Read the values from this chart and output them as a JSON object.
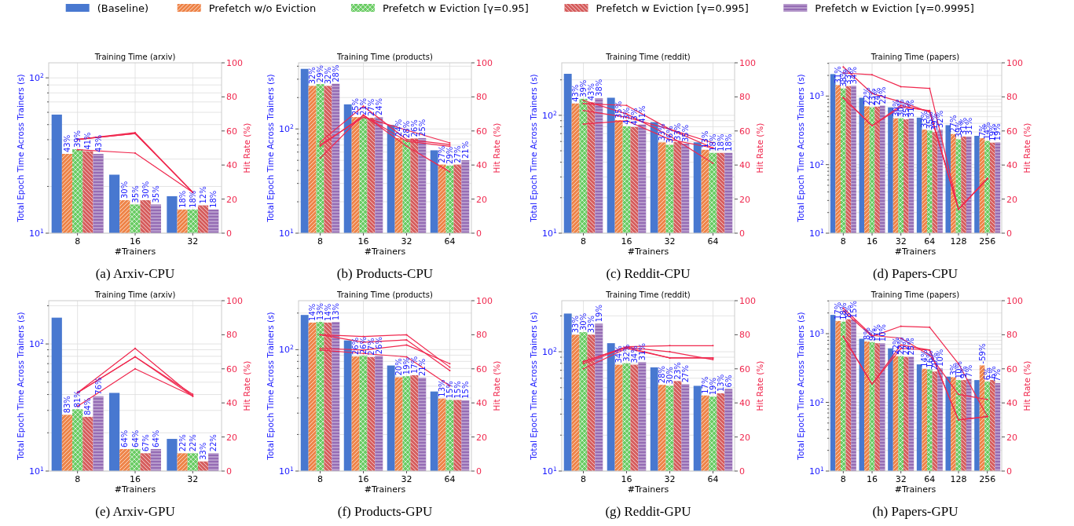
{
  "chart_data": [
    {
      "type": "bar",
      "title": "Training Time (arxiv)",
      "xlabel": "#Trainers",
      "ylabel": "Total Epoch Time Across Trainers (s)",
      "y2label": "Hit Rate (%)",
      "legend": "top",
      "log": "y",
      "grid": true,
      "categories": [
        "8",
        "16",
        "32"
      ],
      "ylim": [
        10,
        125
      ],
      "yticks": [
        {
          "value": 10,
          "label": "10$^{1}$"
        },
        {
          "value": 20,
          "label": null
        },
        {
          "value": 30,
          "label": null
        },
        {
          "value": 40,
          "label": null
        },
        {
          "value": 50,
          "label": null
        },
        {
          "value": 60,
          "label": null
        },
        {
          "value": 70,
          "label": null
        },
        {
          "value": 80,
          "label": null
        },
        {
          "value": 90,
          "label": null
        },
        {
          "value": 100,
          "label": "10$^{2}$"
        }
      ],
      "y2lim": [
        0,
        100
      ],
      "y2ticks": [
        0,
        20,
        40,
        60,
        80,
        100
      ],
      "annotations": [
        "(a) Arxiv-CPU",
        "43%",
        "39%",
        "41%",
        "43%",
        "30%",
        "35%",
        "30%",
        "35%",
        "18%",
        "18%",
        "12%",
        "18%"
      ],
      "series": [
        {
          "name": "(Baseline)",
          "color": "#4878d0",
          "values": [
            58,
            23.8,
            17.3
          ]
        },
        {
          "name": "Prefetch w/o Eviction",
          "color": "#ee854a",
          "values": [
            32.4,
            16.3,
            14.2
          ]
        },
        {
          "name": "Prefetch w Eviction [γ=0.95]",
          "color": "#6acc64",
          "values": [
            34.7,
            15.3,
            14.2
          ]
        },
        {
          "name": "Prefetch w Eviction [γ=0.995]",
          "color": "#d65f5f",
          "values": [
            33.7,
            16.3,
            15.1
          ]
        },
        {
          "name": "Prefetch w Eviction [γ=0.9995]",
          "color": "#956cb4",
          "values": [
            32.4,
            15.3,
            14.2
          ]
        },
        {
          "type": "line",
          "axis": "y2",
          "color": "#f0284e",
          "values": [
            49,
            47,
            24
          ]
        },
        {
          "type": "line",
          "axis": "y2",
          "color": "#f0284e",
          "values": [
            55,
            59,
            24
          ]
        },
        {
          "type": "line",
          "axis": "y2",
          "color": "#f0284e",
          "values": [
            55,
            58.5,
            24
          ]
        },
        {
          "type": "line",
          "axis": "y2",
          "color": "#f0284e",
          "values": [
            55,
            58.5,
            24
          ]
        }
      ]
    },
    {
      "type": "bar",
      "title": "Training Time (products)",
      "xlabel": "#Trainers",
      "ylabel": "Total Epoch Time Across Trainers (s)",
      "y2label": "Hit Rate (%)",
      "log": "y",
      "grid": true,
      "categories": [
        "8",
        "16",
        "32",
        "64"
      ],
      "ylim": [
        10,
        431
      ],
      "yticks": [
        {
          "value": 10,
          "label": "10$^{1}$"
        },
        {
          "value": 20,
          "label": null
        },
        {
          "value": 30,
          "label": null
        },
        {
          "value": 40,
          "label": null
        },
        {
          "value": 50,
          "label": null
        },
        {
          "value": 60,
          "label": null
        },
        {
          "value": 70,
          "label": null
        },
        {
          "value": 80,
          "label": null
        },
        {
          "value": 90,
          "label": null
        },
        {
          "value": 100,
          "label": "10$^{2}$"
        },
        {
          "value": 200,
          "label": null
        },
        {
          "value": 300,
          "label": null
        },
        {
          "value": 400,
          "label": null
        }
      ],
      "y2lim": [
        0,
        100
      ],
      "y2ticks": [
        0,
        20,
        40,
        60,
        80,
        100
      ],
      "annotations": [
        "(b) Products-CPU",
        "32%",
        "29%",
        "32%",
        "28%",
        "25%",
        "21%",
        "27%",
        "24%",
        "24%",
        "28%",
        "26%",
        "25%",
        "27%",
        "29%",
        "27%",
        "21%"
      ],
      "series": [
        {
          "color": "#4878d0",
          "values": [
            377,
            172,
            109,
            62.4
          ]
        },
        {
          "color": "#ee854a",
          "values": [
            259,
            130,
            81.7,
            45.5
          ]
        },
        {
          "color": "#6acc64",
          "values": [
            269,
            130,
            78.7,
            44.5
          ]
        },
        {
          "color": "#d65f5f",
          "values": [
            259,
            128,
            81,
            45.5
          ]
        },
        {
          "color": "#956cb4",
          "values": [
            271,
            130,
            81.7,
            50.1
          ]
        },
        {
          "type": "line",
          "axis": "y2",
          "color": "#f0284e",
          "values": [
            44,
            69.5,
            51,
            36
          ]
        },
        {
          "type": "line",
          "axis": "y2",
          "color": "#f0284e",
          "values": [
            52,
            68,
            60.5,
            53
          ]
        },
        {
          "type": "line",
          "axis": "y2",
          "color": "#f0284e",
          "values": [
            53.5,
            74.5,
            55,
            52
          ]
        },
        {
          "type": "line",
          "axis": "y2",
          "color": "#f0284e",
          "values": [
            51,
            69,
            54,
            51
          ]
        }
      ]
    },
    {
      "type": "bar",
      "title": "Training Time (reddit)",
      "xlabel": "#Trainers",
      "ylabel": "Total Epoch Time Across Trainers (s)",
      "y2label": "Hit Rate (%)",
      "log": "y",
      "grid": true,
      "categories": [
        "8",
        "16",
        "32",
        "64"
      ],
      "ylim": [
        10,
        279
      ],
      "yticks": [
        {
          "value": 10,
          "label": "10$^{1}$"
        },
        {
          "value": 20,
          "label": null
        },
        {
          "value": 30,
          "label": null
        },
        {
          "value": 40,
          "label": null
        },
        {
          "value": 50,
          "label": null
        },
        {
          "value": 60,
          "label": null
        },
        {
          "value": 70,
          "label": null
        },
        {
          "value": 80,
          "label": null
        },
        {
          "value": 90,
          "label": null
        },
        {
          "value": 100,
          "label": "10$^{2}$"
        },
        {
          "value": 200,
          "label": null
        }
      ],
      "y2lim": [
        0,
        100
      ],
      "y2ticks": [
        0,
        20,
        40,
        60,
        80,
        100
      ],
      "annotations": [
        "(c) Reddit-CPU",
        "43%",
        "39%",
        "43%",
        "38%",
        "35%",
        "43%",
        "43%",
        "41%",
        "33%",
        "36%",
        "33%",
        "35%",
        "13%",
        "18%",
        "18%",
        "18%"
      ],
      "series": [
        {
          "color": "#4878d0",
          "values": [
            225,
            141,
            87.5,
            59
          ]
        },
        {
          "color": "#ee854a",
          "values": [
            126,
            91,
            58.9,
            51
          ]
        },
        {
          "color": "#6acc64",
          "values": [
            138,
            80.7,
            56.2,
            48
          ]
        },
        {
          "color": "#d65f5f",
          "values": [
            129,
            79.6,
            59.3,
            48
          ]
        },
        {
          "color": "#956cb4",
          "values": [
            140,
            83.5,
            57.4,
            48
          ]
        },
        {
          "type": "line",
          "axis": "y2",
          "color": "#f0284e",
          "values": [
            78,
            70,
            57,
            41
          ]
        },
        {
          "type": "line",
          "axis": "y2",
          "color": "#f0284e",
          "values": [
            76,
            75,
            61,
            53
          ]
        },
        {
          "type": "line",
          "axis": "y2",
          "color": "#f0284e",
          "values": [
            72,
            68,
            61,
            50
          ]
        },
        {
          "type": "line",
          "axis": "y2",
          "color": "#f0284e",
          "values": [
            64,
            66,
            55,
            50
          ]
        }
      ]
    },
    {
      "type": "bar",
      "title": "Training Time (papers)",
      "xlabel": "#Trainers",
      "ylabel": "Total Epoch Time Across Trainers (s)",
      "y2label": "Hit Rate (%)",
      "log": "y",
      "grid": true,
      "categories": [
        "8",
        "16",
        "32",
        "64",
        "128",
        "256"
      ],
      "ylim": [
        10,
        3055
      ],
      "yticks": [
        {
          "value": 10,
          "label": "10$^{1}$"
        },
        {
          "value": 20,
          "label": null
        },
        {
          "value": 30,
          "label": null
        },
        {
          "value": 40,
          "label": null
        },
        {
          "value": 50,
          "label": null
        },
        {
          "value": 60,
          "label": null
        },
        {
          "value": 70,
          "label": null
        },
        {
          "value": 80,
          "label": null
        },
        {
          "value": 90,
          "label": null
        },
        {
          "value": 100,
          "label": "10$^{2}$"
        },
        {
          "value": 200,
          "label": null
        },
        {
          "value": 300,
          "label": null
        },
        {
          "value": 400,
          "label": null
        },
        {
          "value": 500,
          "label": null
        },
        {
          "value": 600,
          "label": null
        },
        {
          "value": 700,
          "label": null
        },
        {
          "value": 800,
          "label": null
        },
        {
          "value": 900,
          "label": null
        },
        {
          "value": 1000,
          "label": "10$^{3}$"
        },
        {
          "value": 2000,
          "label": null
        },
        {
          "value": 3000,
          "label": null
        }
      ],
      "y2lim": [
        0,
        100
      ],
      "y2ticks": [
        0,
        20,
        40,
        60,
        80,
        100
      ],
      "annotations": [
        "(d) Papers-CPU",
        "31%",
        "38%",
        "33%",
        "34%",
        "22%",
        "23%",
        "24%",
        "22%",
        "30%",
        "30%",
        "35%",
        "31%",
        "33%",
        "35%",
        "39%",
        "32%",
        "27%",
        "39%",
        "31%",
        "31%",
        "7%",
        "14%",
        "19%",
        "19%"
      ],
      "series": [
        {
          "color": "#4878d0",
          "values": [
            2089,
            944,
            684,
            484,
            376,
            263
          ]
        },
        {
          "color": "#ee854a",
          "values": [
            1445,
            708,
            473,
            324,
            279,
            243
          ]
        },
        {
          "color": "#6acc64",
          "values": [
            1288,
            684,
            473,
            313,
            234,
            221
          ]
        },
        {
          "color": "#d65f5f",
          "values": [
            1396,
            700,
            457,
            299,
            257,
            209
          ]
        },
        {
          "color": "#956cb4",
          "values": [
            1413,
            724,
            468,
            324,
            257,
            211
          ]
        },
        {
          "type": "line",
          "axis": "y2",
          "color": "#f0284e",
          "values": [
            79.5,
            63,
            74,
            72,
            14,
            32
          ]
        },
        {
          "type": "line",
          "axis": "y2",
          "color": "#f0284e",
          "values": [
            79.5,
            63,
            75,
            71.5,
            14,
            32
          ]
        },
        {
          "type": "line",
          "axis": "y2",
          "color": "#f0284e",
          "values": [
            94,
            93,
            86,
            85,
            14,
            32
          ]
        },
        {
          "type": "line",
          "axis": "y2",
          "color": "#f0284e",
          "values": [
            97.6,
            82,
            77,
            71,
            14,
            32
          ]
        }
      ]
    },
    {
      "type": "bar",
      "title": "Training Time (arxiv)",
      "xlabel": "#Trainers",
      "ylabel": "Total Epoch Time Across Trainers (s)",
      "y2label": "Hit Rate (%)",
      "log": "y",
      "grid": true,
      "categories": [
        "8",
        "16",
        "32"
      ],
      "ylim": [
        10,
        219
      ],
      "yticks": [
        {
          "value": 10,
          "label": "10$^{1}$"
        },
        {
          "value": 20,
          "label": null
        },
        {
          "value": 30,
          "label": null
        },
        {
          "value": 40,
          "label": null
        },
        {
          "value": 50,
          "label": null
        },
        {
          "value": 60,
          "label": null
        },
        {
          "value": 70,
          "label": null
        },
        {
          "value": 80,
          "label": null
        },
        {
          "value": 90,
          "label": null
        },
        {
          "value": 100,
          "label": "10$^{2}$"
        },
        {
          "value": 200,
          "label": null
        }
      ],
      "y2lim": [
        0,
        100
      ],
      "y2ticks": [
        0,
        20,
        40,
        60,
        80,
        100
      ],
      "annotations": [
        "(e) Arxiv-GPU",
        "83%",
        "81%",
        "84%",
        "76%",
        "64%",
        "64%",
        "67%",
        "64%",
        "22%",
        "22%",
        "33%",
        "22%"
      ],
      "series": [
        {
          "color": "#4878d0",
          "values": [
            161,
            41.2,
            17.9
          ]
        },
        {
          "color": "#ee854a",
          "values": [
            27.7,
            14.9,
            13.8
          ]
        },
        {
          "color": "#6acc64",
          "values": [
            30.6,
            14.9,
            13.8
          ]
        },
        {
          "color": "#d65f5f",
          "values": [
            26.7,
            13.8,
            11.9
          ]
        },
        {
          "color": "#956cb4",
          "values": [
            38.8,
            14.9,
            13.8
          ]
        },
        {
          "type": "line",
          "axis": "y2",
          "color": "#f0284e",
          "values": [
            38,
            60,
            44
          ]
        },
        {
          "type": "line",
          "axis": "y2",
          "color": "#f0284e",
          "values": [
            46,
            72,
            44
          ]
        },
        {
          "type": "line",
          "axis": "y2",
          "color": "#f0284e",
          "values": [
            46,
            67,
            44
          ]
        },
        {
          "type": "line",
          "axis": "y2",
          "color": "#f0284e",
          "values": [
            46,
            67,
            45
          ]
        }
      ]
    },
    {
      "type": "bar",
      "title": "Training Time (products)",
      "xlabel": "#Trainers",
      "ylabel": "Total Epoch Time Across Trainers (s)",
      "y2label": "Hit Rate (%)",
      "log": "y",
      "grid": true,
      "categories": [
        "8",
        "16",
        "32",
        "64"
      ],
      "ylim": [
        10,
        253
      ],
      "yticks": [
        {
          "value": 10,
          "label": "10$^{1}$"
        },
        {
          "value": 20,
          "label": null
        },
        {
          "value": 30,
          "label": null
        },
        {
          "value": 40,
          "label": null
        },
        {
          "value": 50,
          "label": null
        },
        {
          "value": 60,
          "label": null
        },
        {
          "value": 70,
          "label": null
        },
        {
          "value": 80,
          "label": null
        },
        {
          "value": 90,
          "label": null
        },
        {
          "value": 100,
          "label": "10$^{2}$"
        },
        {
          "value": 200,
          "label": null
        }
      ],
      "y2lim": [
        0,
        100
      ],
      "y2ticks": [
        0,
        20,
        40,
        60,
        80,
        100
      ],
      "annotations": [
        "(f) Products-GPU",
        "14%",
        "13%",
        "14%",
        "13%",
        "26%",
        "26%",
        "27%",
        "26%",
        "20%",
        "19%",
        "17%",
        "21%",
        "13%",
        "15%",
        "15%",
        "15%"
      ],
      "series": [
        {
          "color": "#4878d0",
          "values": [
            193,
            119,
            74,
            45.2
          ]
        },
        {
          "color": "#ee854a",
          "values": [
            167,
            88,
            59.2,
            39.5
          ]
        },
        {
          "color": "#6acc64",
          "values": [
            169,
            89,
            60.4,
            38.5
          ]
        },
        {
          "color": "#d65f5f",
          "values": [
            167,
            87,
            61.5,
            38.5
          ]
        },
        {
          "color": "#956cb4",
          "values": [
            169,
            89,
            58.8,
            38.3
          ]
        },
        {
          "type": "line",
          "axis": "y2",
          "color": "#f0284e",
          "values": [
            71,
            69,
            67,
            50
          ]
        },
        {
          "type": "line",
          "axis": "y2",
          "color": "#f0284e",
          "values": [
            72,
            71,
            74,
            63
          ]
        },
        {
          "type": "line",
          "axis": "y2",
          "color": "#f0284e",
          "values": [
            80,
            79,
            80,
            61
          ]
        },
        {
          "type": "line",
          "axis": "y2",
          "color": "#f0284e",
          "values": [
            80,
            75.6,
            77,
            59
          ]
        }
      ]
    },
    {
      "type": "bar",
      "title": "Training Time (reddit)",
      "xlabel": "#Trainers",
      "ylabel": "Total Epoch Time Across Trainers (s)",
      "y2label": "Hit Rate (%)",
      "log": "y",
      "grid": true,
      "categories": [
        "8",
        "16",
        "32",
        "64"
      ],
      "ylim": [
        10,
        268
      ],
      "yticks": [
        {
          "value": 10,
          "label": "10$^{1}$"
        },
        {
          "value": 20,
          "label": null
        },
        {
          "value": 30,
          "label": null
        },
        {
          "value": 40,
          "label": null
        },
        {
          "value": 50,
          "label": null
        },
        {
          "value": 60,
          "label": null
        },
        {
          "value": 70,
          "label": null
        },
        {
          "value": 80,
          "label": null
        },
        {
          "value": 90,
          "label": null
        },
        {
          "value": 100,
          "label": "10$^{2}$"
        },
        {
          "value": 200,
          "label": null
        }
      ],
      "y2lim": [
        0,
        100
      ],
      "y2ticks": [
        0,
        20,
        40,
        60,
        80,
        100
      ],
      "annotations": [
        "(g) Reddit-GPU",
        "33%",
        "30%",
        "33%",
        "19%",
        "34%",
        "32%",
        "34%",
        "31%",
        "28%",
        "30%",
        "23%",
        "27%",
        "17%",
        "19%",
        "13%",
        "6%"
      ],
      "series": [
        {
          "color": "#4878d0",
          "values": [
            209,
            118,
            74,
            51.8
          ]
        },
        {
          "color": "#ee854a",
          "values": [
            139,
            77.9,
            52.8,
            43
          ]
        },
        {
          "color": "#6acc64",
          "values": [
            146,
            80,
            51.8,
            42
          ]
        },
        {
          "color": "#d65f5f",
          "values": [
            139,
            77.9,
            56.8,
            44.8
          ]
        },
        {
          "color": "#956cb4",
          "values": [
            172,
            82,
            53.5,
            48.8
          ]
        },
        {
          "type": "line",
          "axis": "y2",
          "color": "#f0284e",
          "values": [
            63,
            72.6,
            70,
            65.4
          ]
        },
        {
          "type": "line",
          "axis": "y2",
          "color": "#f0284e",
          "values": [
            64,
            73,
            73.6,
            73.6
          ]
        },
        {
          "type": "line",
          "axis": "y2",
          "color": "#f0284e",
          "values": [
            64.4,
            72.6,
            66.4,
            66.4
          ]
        },
        {
          "type": "line",
          "axis": "y2",
          "color": "#f0284e",
          "values": [
            60,
            72,
            66.4,
            66.4
          ]
        }
      ]
    },
    {
      "type": "bar",
      "title": "Training Time (papers)",
      "xlabel": "#Trainers",
      "ylabel": "Total Epoch Time Across Trainers (s)",
      "y2label": "Hit Rate (%)",
      "log": "y",
      "grid": true,
      "categories": [
        "8",
        "16",
        "32",
        "64",
        "128",
        "256"
      ],
      "ylim": [
        10,
        3020
      ],
      "yticks": [
        {
          "value": 10,
          "label": "10$^{1}$"
        },
        {
          "value": 20,
          "label": null
        },
        {
          "value": 30,
          "label": null
        },
        {
          "value": 40,
          "label": null
        },
        {
          "value": 50,
          "label": null
        },
        {
          "value": 60,
          "label": null
        },
        {
          "value": 70,
          "label": null
        },
        {
          "value": 80,
          "label": null
        },
        {
          "value": 90,
          "label": null
        },
        {
          "value": 100,
          "label": "10$^{2}$"
        },
        {
          "value": 200,
          "label": null
        },
        {
          "value": 300,
          "label": null
        },
        {
          "value": 400,
          "label": null
        },
        {
          "value": 500,
          "label": null
        },
        {
          "value": 600,
          "label": null
        },
        {
          "value": 700,
          "label": null
        },
        {
          "value": 800,
          "label": null
        },
        {
          "value": 900,
          "label": null
        },
        {
          "value": 1000,
          "label": "10$^{3}$"
        },
        {
          "value": 2000,
          "label": null
        },
        {
          "value": 3000,
          "label": null
        }
      ],
      "y2lim": [
        0,
        100
      ],
      "y2ticks": [
        0,
        20,
        40,
        60,
        80,
        100
      ],
      "annotations": [
        "(h) Papers-GPU",
        "17%",
        "18%",
        "8%",
        "15%",
        "8%",
        "9%",
        "11%",
        "10%",
        "22%",
        "22%",
        "22%",
        "25%",
        "14%",
        "16%",
        "20%",
        "10%",
        "3%",
        "10%",
        "9%",
        "7%",
        "-59%",
        "6%",
        "6%",
        "7%"
      ],
      "series": [
        {
          "color": "#4878d0",
          "values": [
            1875,
            843,
            612,
            357,
            237,
            211
          ]
        },
        {
          "color": "#ee854a",
          "values": [
            1527,
            769,
            470,
            308,
            232,
            345
          ]
        },
        {
          "color": "#6acc64",
          "values": [
            1492,
            751,
            470,
            301,
            211,
            200
          ]
        },
        {
          "color": "#d65f5f",
          "values": [
            1620,
            726,
            460,
            281,
            211,
            211
          ]
        },
        {
          "color": "#956cb4",
          "values": [
            1600,
            726,
            460,
            315,
            219,
            191
          ]
        },
        {
          "type": "line",
          "axis": "y2",
          "color": "#f0284e",
          "values": [
            79,
            51,
            72,
            71,
            30,
            32
          ]
        },
        {
          "type": "line",
          "axis": "y2",
          "color": "#f0284e",
          "values": [
            79,
            51,
            74,
            71,
            30,
            32
          ]
        },
        {
          "type": "line",
          "axis": "y2",
          "color": "#f0284e",
          "values": [
            94,
            79,
            85,
            84.4,
            63,
            32
          ]
        },
        {
          "type": "line",
          "axis": "y2",
          "color": "#f0284e",
          "values": [
            95.6,
            79.6,
            78,
            68,
            45,
            42
          ]
        }
      ]
    }
  ]
}
